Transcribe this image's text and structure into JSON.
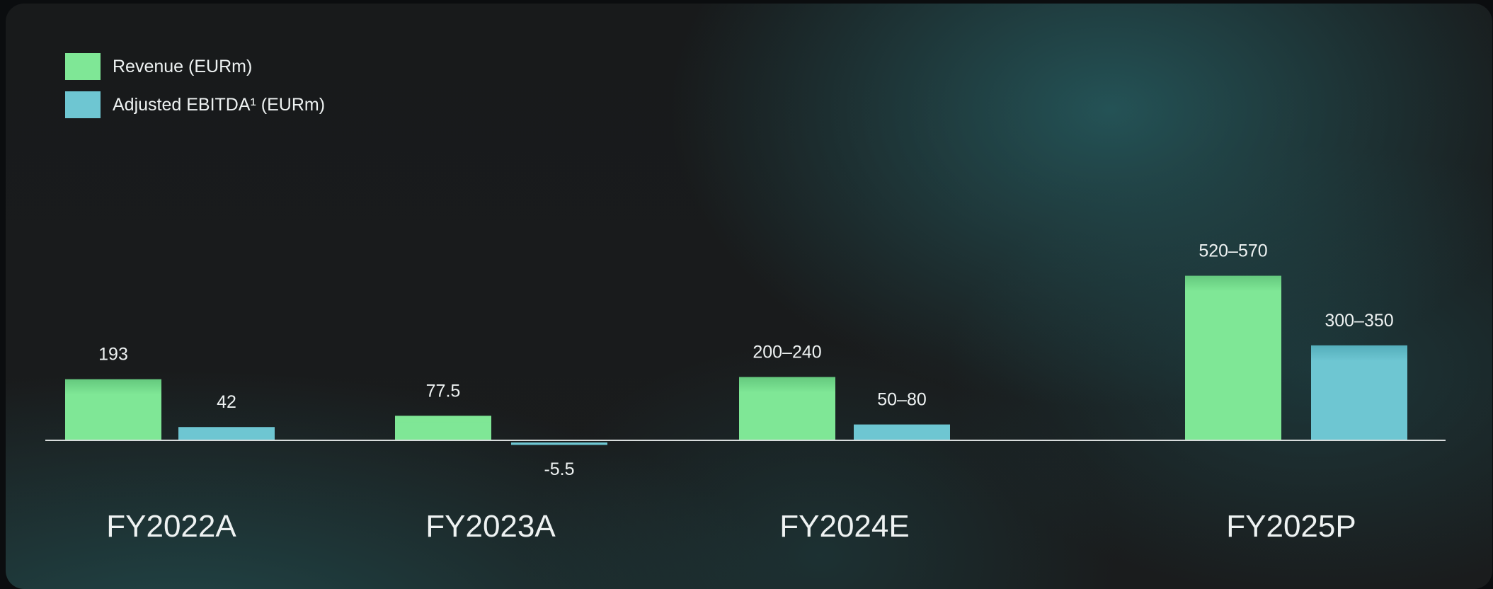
{
  "chart_data": {
    "type": "bar",
    "categories": [
      "FY2022A",
      "FY2023A",
      "FY2024E",
      "FY2025P"
    ],
    "series": [
      {
        "name": "Revenue (EURm)",
        "color": "#7fe796",
        "values": [
          193,
          77.5,
          [
            200,
            240
          ],
          [
            520,
            570
          ]
        ],
        "labels": [
          "193",
          "77.5",
          "200–240",
          "520–570"
        ]
      },
      {
        "name": "Adjusted EBITDA¹ (EURm)",
        "color": "#6ec6d2",
        "values": [
          42,
          -5.5,
          [
            50,
            80
          ],
          [
            300,
            350
          ]
        ],
        "labels": [
          "42",
          "-5.5",
          "50–80",
          "300–350"
        ]
      }
    ],
    "legend_position": "top-left",
    "grid": false
  }
}
